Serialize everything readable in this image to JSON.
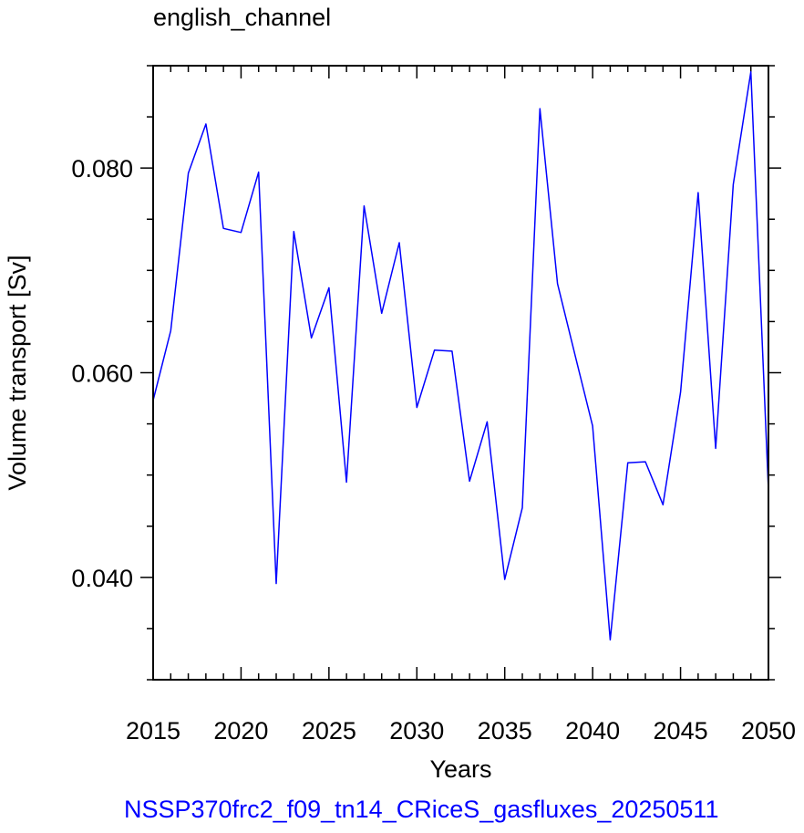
{
  "chart_data": {
    "type": "line",
    "title": "english_channel",
    "xlabel": "Years",
    "ylabel": "Volume transport [Sv]",
    "footer": "NSSP370frc2_f09_tn14_CRiceS_gasfluxes_20250511",
    "xlim": [
      2015,
      2050
    ],
    "ylim": [
      0.03,
      0.09
    ],
    "x_ticks": [
      2015,
      2020,
      2025,
      2030,
      2035,
      2040,
      2045,
      2050
    ],
    "y_ticks": [
      0.04,
      0.06,
      0.08
    ],
    "y_tick_labels": [
      "0.040",
      "0.060",
      "0.080"
    ],
    "line_color": "#0000ff",
    "series": [
      {
        "x": [
          2015,
          2016,
          2017,
          2018,
          2019,
          2020,
          2021,
          2022,
          2023,
          2024,
          2025,
          2026,
          2027,
          2028,
          2029,
          2030,
          2031,
          2032,
          2033,
          2034,
          2035,
          2036,
          2037,
          2038,
          2039,
          2040,
          2041,
          2042,
          2043,
          2044,
          2045,
          2046,
          2047,
          2048,
          2049,
          2050
        ],
        "values": [
          0.0573,
          0.0641,
          0.0795,
          0.0843,
          0.0741,
          0.0737,
          0.0796,
          0.0394,
          0.0738,
          0.0634,
          0.0683,
          0.0493,
          0.0763,
          0.0658,
          0.0727,
          0.0566,
          0.0622,
          0.0621,
          0.0494,
          0.0552,
          0.0398,
          0.0468,
          0.0858,
          0.0687,
          0.0617,
          0.0548,
          0.0339,
          0.0512,
          0.0513,
          0.0471,
          0.0581,
          0.0776,
          0.0526,
          0.0784,
          0.0894,
          0.0485
        ]
      }
    ]
  }
}
